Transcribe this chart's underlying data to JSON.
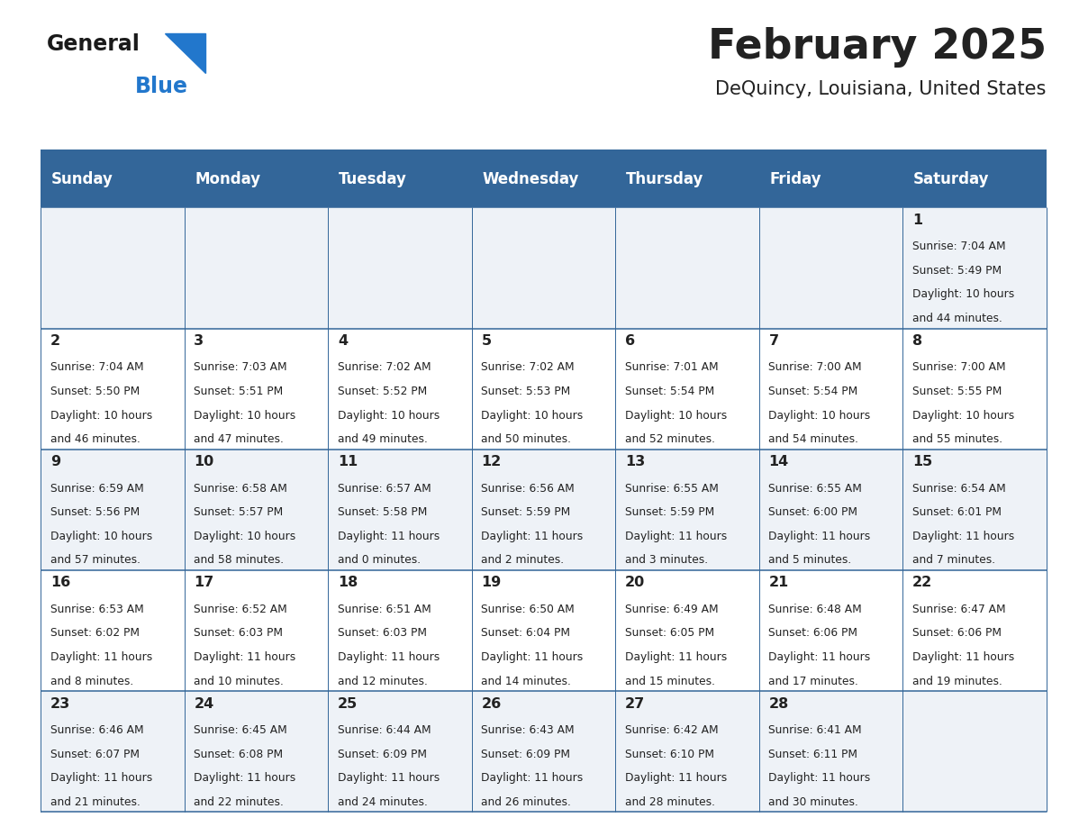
{
  "title": "February 2025",
  "subtitle": "DeQuincy, Louisiana, United States",
  "header_bg": "#336699",
  "header_text_color": "#ffffff",
  "cell_bg_light": "#eef2f7",
  "cell_bg_white": "#ffffff",
  "text_color": "#222222",
  "days_of_week": [
    "Sunday",
    "Monday",
    "Tuesday",
    "Wednesday",
    "Thursday",
    "Friday",
    "Saturday"
  ],
  "logo_general_color": "#1a1a1a",
  "logo_blue_color": "#2277cc",
  "calendar": [
    [
      null,
      null,
      null,
      null,
      null,
      null,
      {
        "day": 1,
        "sunrise": "7:04 AM",
        "sunset": "5:49 PM",
        "daylight_a": "10 hours",
        "daylight_b": "and 44 minutes."
      }
    ],
    [
      {
        "day": 2,
        "sunrise": "7:04 AM",
        "sunset": "5:50 PM",
        "daylight_a": "10 hours",
        "daylight_b": "and 46 minutes."
      },
      {
        "day": 3,
        "sunrise": "7:03 AM",
        "sunset": "5:51 PM",
        "daylight_a": "10 hours",
        "daylight_b": "and 47 minutes."
      },
      {
        "day": 4,
        "sunrise": "7:02 AM",
        "sunset": "5:52 PM",
        "daylight_a": "10 hours",
        "daylight_b": "and 49 minutes."
      },
      {
        "day": 5,
        "sunrise": "7:02 AM",
        "sunset": "5:53 PM",
        "daylight_a": "10 hours",
        "daylight_b": "and 50 minutes."
      },
      {
        "day": 6,
        "sunrise": "7:01 AM",
        "sunset": "5:54 PM",
        "daylight_a": "10 hours",
        "daylight_b": "and 52 minutes."
      },
      {
        "day": 7,
        "sunrise": "7:00 AM",
        "sunset": "5:54 PM",
        "daylight_a": "10 hours",
        "daylight_b": "and 54 minutes."
      },
      {
        "day": 8,
        "sunrise": "7:00 AM",
        "sunset": "5:55 PM",
        "daylight_a": "10 hours",
        "daylight_b": "and 55 minutes."
      }
    ],
    [
      {
        "day": 9,
        "sunrise": "6:59 AM",
        "sunset": "5:56 PM",
        "daylight_a": "10 hours",
        "daylight_b": "and 57 minutes."
      },
      {
        "day": 10,
        "sunrise": "6:58 AM",
        "sunset": "5:57 PM",
        "daylight_a": "10 hours",
        "daylight_b": "and 58 minutes."
      },
      {
        "day": 11,
        "sunrise": "6:57 AM",
        "sunset": "5:58 PM",
        "daylight_a": "11 hours",
        "daylight_b": "and 0 minutes."
      },
      {
        "day": 12,
        "sunrise": "6:56 AM",
        "sunset": "5:59 PM",
        "daylight_a": "11 hours",
        "daylight_b": "and 2 minutes."
      },
      {
        "day": 13,
        "sunrise": "6:55 AM",
        "sunset": "5:59 PM",
        "daylight_a": "11 hours",
        "daylight_b": "and 3 minutes."
      },
      {
        "day": 14,
        "sunrise": "6:55 AM",
        "sunset": "6:00 PM",
        "daylight_a": "11 hours",
        "daylight_b": "and 5 minutes."
      },
      {
        "day": 15,
        "sunrise": "6:54 AM",
        "sunset": "6:01 PM",
        "daylight_a": "11 hours",
        "daylight_b": "and 7 minutes."
      }
    ],
    [
      {
        "day": 16,
        "sunrise": "6:53 AM",
        "sunset": "6:02 PM",
        "daylight_a": "11 hours",
        "daylight_b": "and 8 minutes."
      },
      {
        "day": 17,
        "sunrise": "6:52 AM",
        "sunset": "6:03 PM",
        "daylight_a": "11 hours",
        "daylight_b": "and 10 minutes."
      },
      {
        "day": 18,
        "sunrise": "6:51 AM",
        "sunset": "6:03 PM",
        "daylight_a": "11 hours",
        "daylight_b": "and 12 minutes."
      },
      {
        "day": 19,
        "sunrise": "6:50 AM",
        "sunset": "6:04 PM",
        "daylight_a": "11 hours",
        "daylight_b": "and 14 minutes."
      },
      {
        "day": 20,
        "sunrise": "6:49 AM",
        "sunset": "6:05 PM",
        "daylight_a": "11 hours",
        "daylight_b": "and 15 minutes."
      },
      {
        "day": 21,
        "sunrise": "6:48 AM",
        "sunset": "6:06 PM",
        "daylight_a": "11 hours",
        "daylight_b": "and 17 minutes."
      },
      {
        "day": 22,
        "sunrise": "6:47 AM",
        "sunset": "6:06 PM",
        "daylight_a": "11 hours",
        "daylight_b": "and 19 minutes."
      }
    ],
    [
      {
        "day": 23,
        "sunrise": "6:46 AM",
        "sunset": "6:07 PM",
        "daylight_a": "11 hours",
        "daylight_b": "and 21 minutes."
      },
      {
        "day": 24,
        "sunrise": "6:45 AM",
        "sunset": "6:08 PM",
        "daylight_a": "11 hours",
        "daylight_b": "and 22 minutes."
      },
      {
        "day": 25,
        "sunrise": "6:44 AM",
        "sunset": "6:09 PM",
        "daylight_a": "11 hours",
        "daylight_b": "and 24 minutes."
      },
      {
        "day": 26,
        "sunrise": "6:43 AM",
        "sunset": "6:09 PM",
        "daylight_a": "11 hours",
        "daylight_b": "and 26 minutes."
      },
      {
        "day": 27,
        "sunrise": "6:42 AM",
        "sunset": "6:10 PM",
        "daylight_a": "11 hours",
        "daylight_b": "and 28 minutes."
      },
      {
        "day": 28,
        "sunrise": "6:41 AM",
        "sunset": "6:11 PM",
        "daylight_a": "11 hours",
        "daylight_b": "and 30 minutes."
      },
      null
    ]
  ]
}
